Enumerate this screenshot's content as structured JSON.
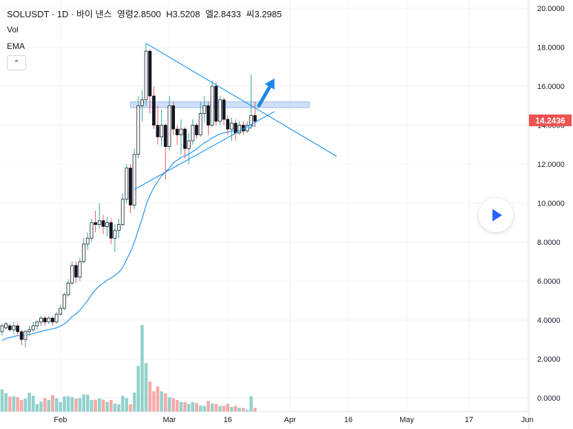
{
  "legend": {
    "symbol": "SOLUSDT · 1D · 바이 낸스",
    "open_label": "영령",
    "open_value": "2.8500",
    "high_label": "H",
    "high_value": "3.5208",
    "low_label": "엘",
    "low_value": "2.8433",
    "close_label": "씨",
    "close_value": "3.2985"
  },
  "indicators": {
    "vol": "Vol",
    "ema": "EMA"
  },
  "collapse_button": "⌃",
  "price_badge": "14.2436",
  "colors": {
    "up": "#26a69a",
    "down": "#ef5350",
    "ema": "#2196f3",
    "trend": "#2196f3",
    "zone": "#bcd2f5",
    "arrow": "#1e88e5"
  },
  "chart_data": {
    "type": "candlestick",
    "title": "",
    "ylim": [
      -0.7,
      20.2
    ],
    "y_ticks": [
      "20.0000",
      "18.0000",
      "16.0000",
      "14.0000",
      "12.0000",
      "10.0000",
      "8.0000",
      "6.0000",
      "4.0000",
      "2.0000",
      "0.0000"
    ],
    "x_ticks": [
      {
        "label": "Feb",
        "day": 15
      },
      {
        "label": "Mar",
        "day": 43
      },
      {
        "label": "16",
        "day": 58
      },
      {
        "label": "Apr",
        "day": 74
      },
      {
        "label": "16",
        "day": 89
      },
      {
        "label": "May",
        "day": 104
      },
      {
        "label": "17",
        "day": 120
      },
      {
        "label": "Jun",
        "day": 135
      }
    ],
    "candles": [
      [
        0,
        3.4,
        3.7,
        3.2,
        3.8
      ],
      [
        1,
        3.6,
        3.8,
        3.5,
        3.9
      ],
      [
        2,
        3.7,
        3.5,
        3.4,
        3.8
      ],
      [
        3,
        3.5,
        3.7,
        3.3,
        3.9
      ],
      [
        4,
        3.7,
        3.4,
        3.2,
        3.8
      ],
      [
        5,
        3.4,
        3.0,
        2.7,
        3.5
      ],
      [
        6,
        3.0,
        3.4,
        2.6,
        3.5
      ],
      [
        7,
        3.4,
        3.5,
        3.2,
        3.7
      ],
      [
        8,
        3.5,
        3.7,
        3.4,
        3.9
      ],
      [
        9,
        3.7,
        3.9,
        3.5,
        4.0
      ],
      [
        10,
        3.9,
        4.1,
        3.7,
        4.2
      ],
      [
        11,
        4.1,
        3.9,
        3.7,
        4.2
      ],
      [
        12,
        3.9,
        4.1,
        3.8,
        4.2
      ],
      [
        13,
        4.1,
        3.9,
        3.7,
        4.2
      ],
      [
        14,
        3.9,
        4.3,
        3.8,
        4.4
      ],
      [
        15,
        4.3,
        4.6,
        4.2,
        4.8
      ],
      [
        16,
        4.6,
        5.3,
        4.5,
        5.4
      ],
      [
        17,
        5.3,
        5.9,
        5.2,
        6.1
      ],
      [
        18,
        5.9,
        6.8,
        5.8,
        7.0
      ],
      [
        19,
        6.8,
        6.2,
        5.9,
        7.0
      ],
      [
        20,
        6.2,
        7.0,
        6.0,
        7.2
      ],
      [
        21,
        7.0,
        7.9,
        6.9,
        8.2
      ],
      [
        22,
        7.9,
        8.2,
        7.6,
        8.5
      ],
      [
        23,
        8.2,
        9.0,
        8.0,
        9.2
      ],
      [
        24,
        9.0,
        8.9,
        8.5,
        9.6
      ],
      [
        25,
        8.9,
        9.1,
        8.7,
        10.0
      ],
      [
        26,
        9.1,
        8.8,
        8.4,
        9.4
      ],
      [
        27,
        8.8,
        9.0,
        8.3,
        9.3
      ],
      [
        28,
        9.0,
        8.2,
        7.9,
        9.2
      ],
      [
        29,
        8.2,
        8.6,
        7.5,
        8.9
      ],
      [
        30,
        8.6,
        8.9,
        8.2,
        9.2
      ],
      [
        31,
        8.9,
        10.2,
        8.8,
        10.5
      ],
      [
        32,
        10.2,
        11.8,
        10.0,
        12.0
      ],
      [
        33,
        11.8,
        9.9,
        9.5,
        12.0
      ],
      [
        34,
        9.9,
        12.5,
        9.7,
        12.8
      ],
      [
        35,
        12.5,
        15.0,
        12.3,
        15.5
      ],
      [
        36,
        15.0,
        15.3,
        14.2,
        15.8
      ],
      [
        37,
        15.3,
        17.8,
        15.0,
        18.2
      ],
      [
        38,
        17.8,
        15.5,
        14.6,
        17.9
      ],
      [
        39,
        15.5,
        14.0,
        13.8,
        16.0
      ],
      [
        40,
        14.0,
        13.4,
        13.0,
        15.0
      ],
      [
        41,
        13.4,
        14.0,
        12.9,
        14.8
      ],
      [
        42,
        14.0,
        12.9,
        11.2,
        14.1
      ],
      [
        43,
        12.9,
        15.0,
        12.7,
        15.5
      ],
      [
        44,
        15.0,
        13.8,
        13.5,
        15.2
      ],
      [
        45,
        13.8,
        13.5,
        13.0,
        14.0
      ],
      [
        46,
        13.5,
        13.8,
        12.5,
        14.3
      ],
      [
        47,
        13.8,
        12.8,
        12.3,
        13.9
      ],
      [
        48,
        12.8,
        13.2,
        12.0,
        13.6
      ],
      [
        49,
        13.2,
        14.0,
        13.0,
        14.3
      ],
      [
        50,
        14.0,
        13.5,
        13.3,
        14.1
      ],
      [
        51,
        13.5,
        14.6,
        13.4,
        15.2
      ],
      [
        52,
        14.6,
        15.0,
        14.2,
        15.5
      ],
      [
        53,
        15.0,
        14.0,
        13.5,
        15.2
      ],
      [
        54,
        14.0,
        16.0,
        13.9,
        16.3
      ],
      [
        55,
        16.0,
        14.2,
        14.0,
        16.2
      ],
      [
        56,
        14.2,
        15.3,
        14.0,
        15.5
      ],
      [
        57,
        15.3,
        14.3,
        14.0,
        15.4
      ],
      [
        58,
        14.3,
        13.8,
        13.5,
        14.5
      ],
      [
        59,
        13.8,
        14.1,
        13.2,
        14.4
      ],
      [
        60,
        14.1,
        13.6,
        13.2,
        14.3
      ],
      [
        61,
        13.6,
        14.0,
        13.5,
        14.2
      ],
      [
        62,
        14.0,
        13.7,
        13.5,
        14.2
      ],
      [
        63,
        13.7,
        14.0,
        13.6,
        14.2
      ],
      [
        64,
        14.0,
        14.5,
        13.8,
        16.6
      ],
      [
        65,
        14.5,
        14.2,
        13.9,
        15.2
      ]
    ],
    "volumes": [
      1.15,
      0.95,
      0.78,
      0.8,
      0.75,
      0.6,
      0.68,
      0.98,
      0.82,
      0.4,
      0.52,
      0.7,
      0.6,
      0.85,
      0.7,
      0.5,
      0.78,
      0.8,
      0.75,
      0.68,
      0.7,
      0.9,
      0.88,
      0.6,
      0.62,
      0.68,
      0.62,
      0.5,
      0.6,
      0.42,
      0.38,
      0.82,
      0.7,
      0.38,
      0.98,
      2.35,
      4.45,
      2.5,
      1.55,
      1.05,
      1.3,
      1.05,
      0.95,
      0.75,
      0.7,
      0.6,
      0.5,
      0.5,
      0.4,
      0.5,
      0.45,
      0.32,
      0.3,
      0.55,
      0.42,
      0.4,
      0.3,
      0.3,
      0.4,
      0.25,
      0.3,
      0.2,
      0.2,
      0.1,
      0.8,
      0.2
    ],
    "ema": [
      2.95,
      3.05,
      3.1,
      3.15,
      3.2,
      3.18,
      3.22,
      3.26,
      3.3,
      3.36,
      3.42,
      3.46,
      3.51,
      3.55,
      3.6,
      3.68,
      3.8,
      3.96,
      4.18,
      4.31,
      4.5,
      4.75,
      5.0,
      5.3,
      5.55,
      5.75,
      5.9,
      6.05,
      6.15,
      6.3,
      6.45,
      6.7,
      7.1,
      7.5,
      8.0,
      8.6,
      9.2,
      9.9,
      10.4,
      10.8,
      11.1,
      11.4,
      11.6,
      11.8,
      12.05,
      12.2,
      12.35,
      12.42,
      12.52,
      12.64,
      12.78,
      12.95,
      13.1,
      13.2,
      13.35,
      13.45,
      13.55,
      13.6,
      13.65,
      13.7,
      13.72,
      13.75,
      13.77,
      13.79,
      13.9,
      14.0
    ],
    "annotations": {
      "triangle_upper": [
        [
          37,
          18.2
        ],
        [
          86,
          12.4
        ]
      ],
      "triangle_lower": [
        [
          34,
          10.7
        ],
        [
          70,
          14.7
        ]
      ],
      "resistance_zone": {
        "x1": 33,
        "x2": 79,
        "y1": 14.9,
        "y2": 15.2
      },
      "breakout_arrow": {
        "from": [
          66,
          15.0
        ],
        "to": [
          70,
          16.4
        ]
      }
    }
  }
}
